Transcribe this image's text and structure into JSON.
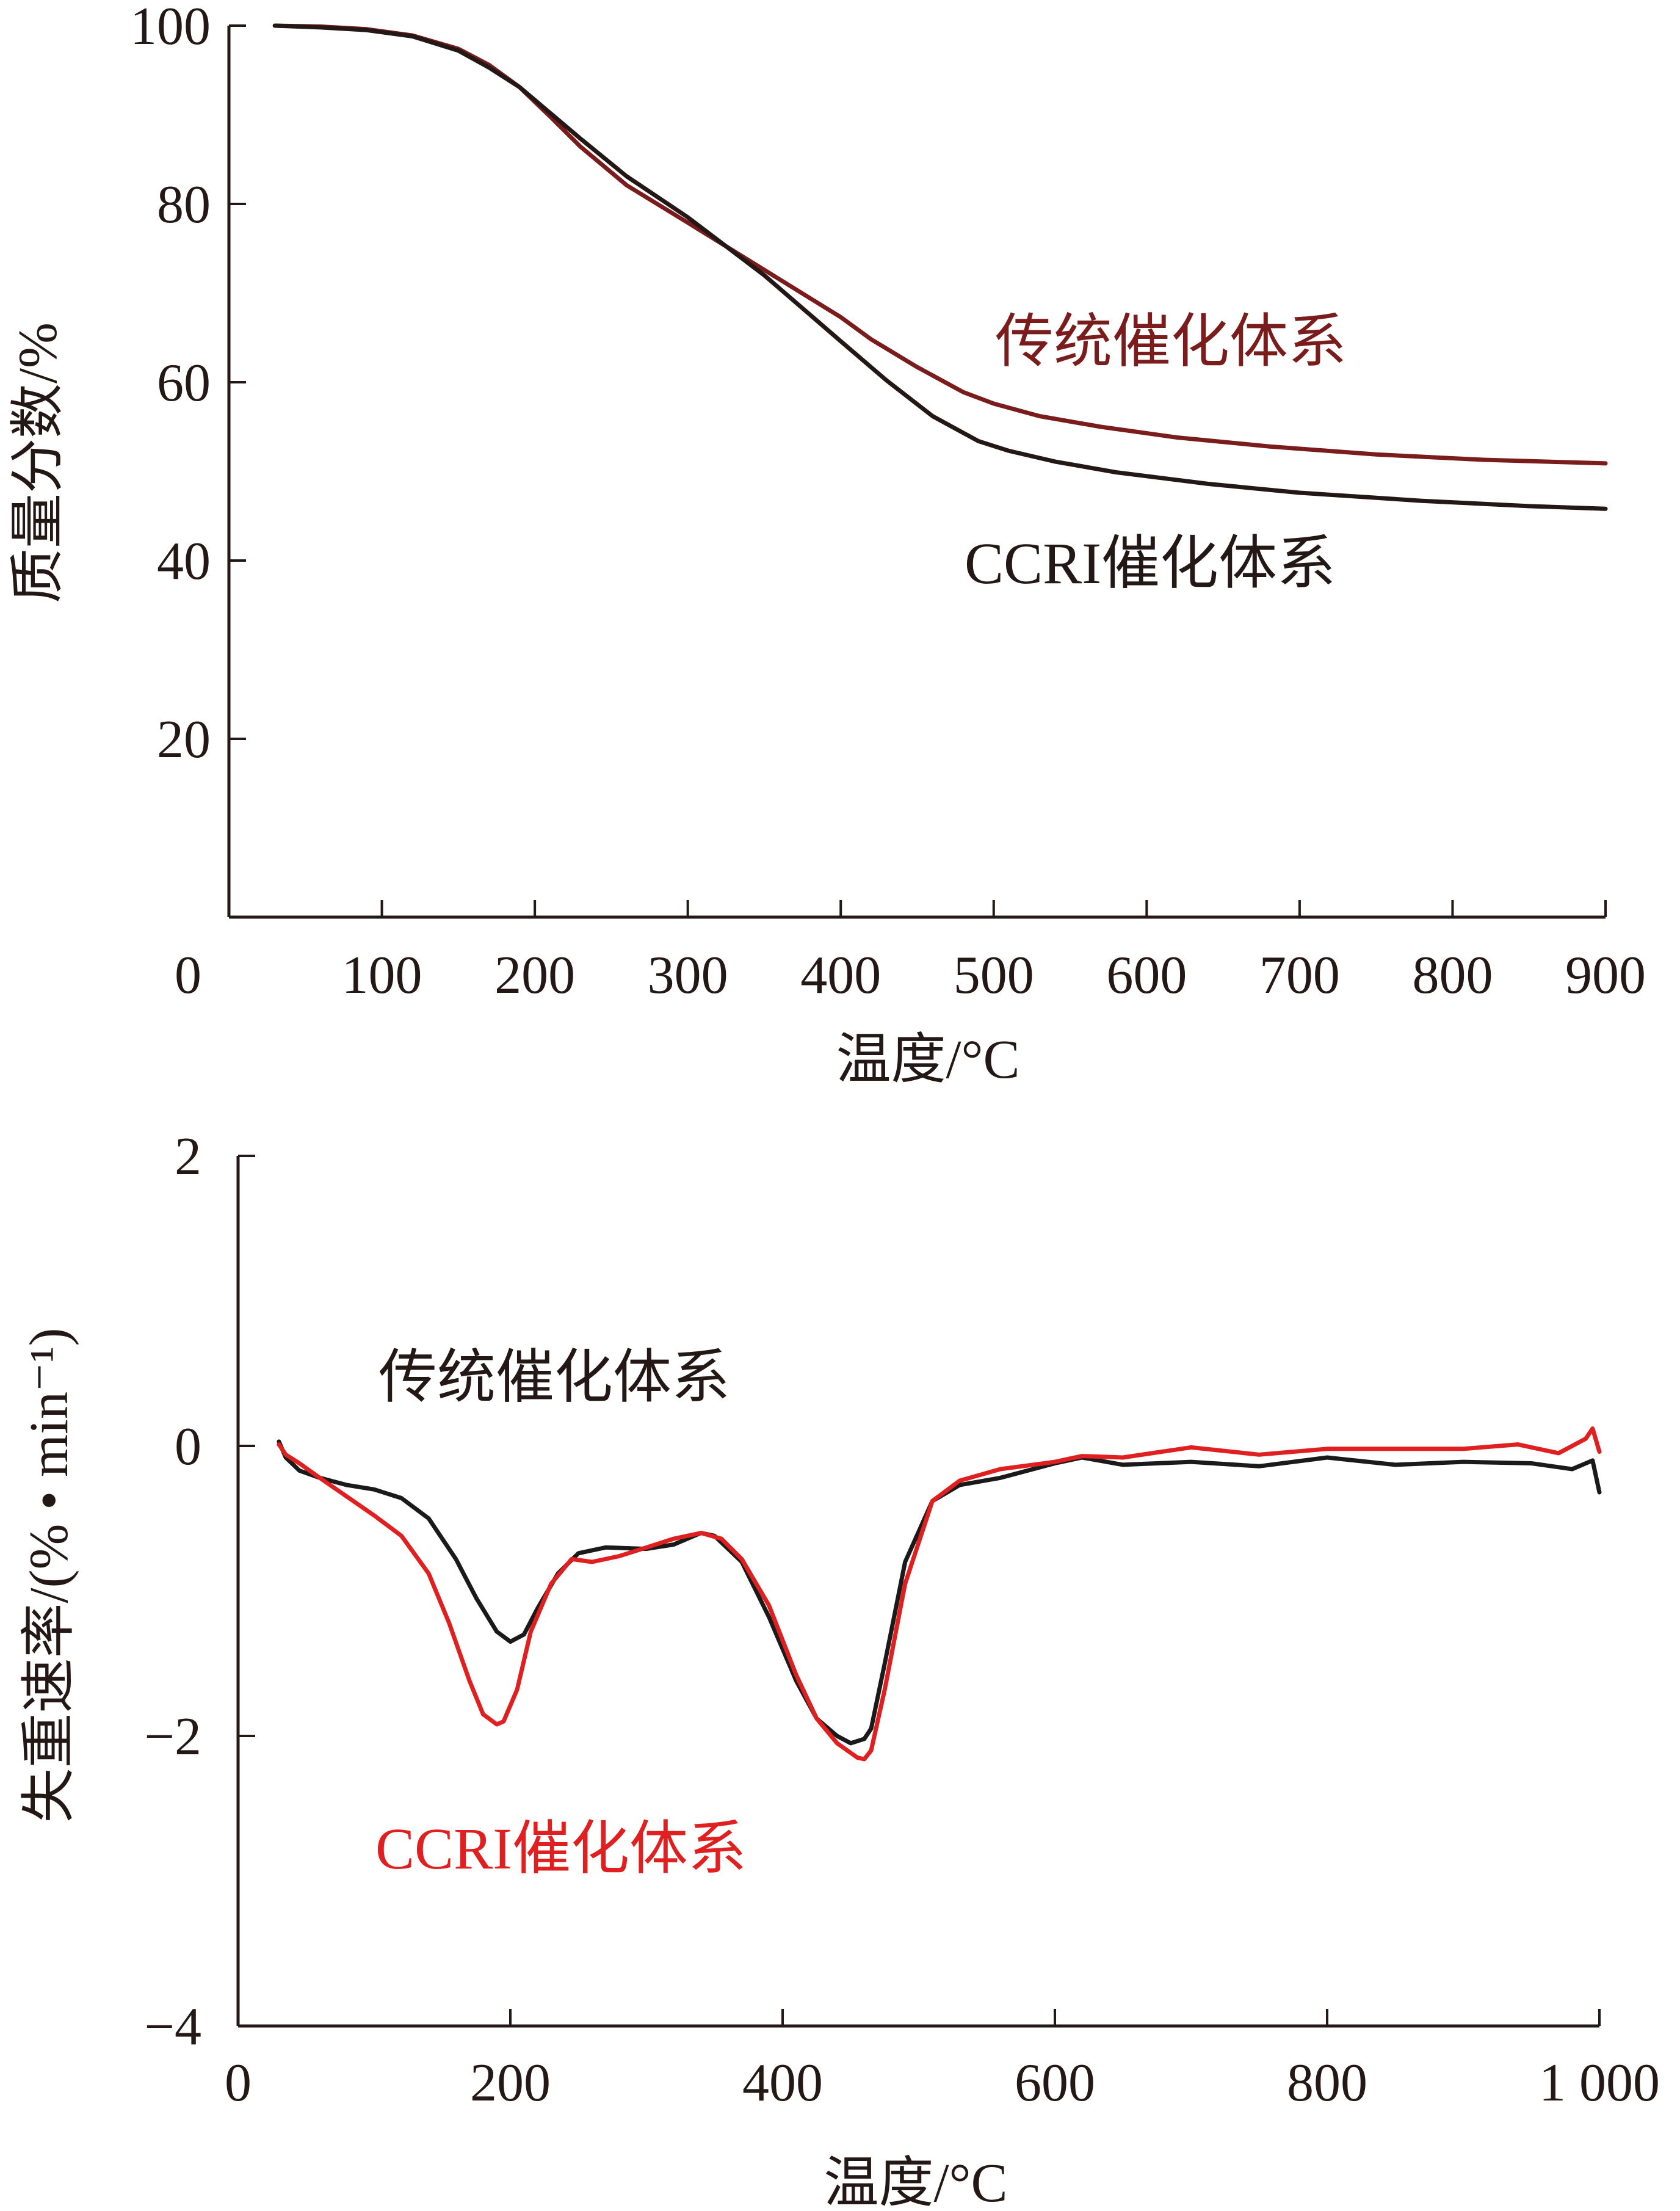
{
  "chart_data": [
    {
      "type": "line",
      "xlabel": "温度/°C",
      "ylabel": "质量分数/%",
      "xlim": [
        0,
        900
      ],
      "ylim": [
        0,
        100
      ],
      "x_ticks": [
        100,
        200,
        300,
        400,
        500,
        600,
        700,
        800,
        900
      ],
      "x_tick_labels": [
        "100",
        "200",
        "300",
        "400",
        "500",
        "600",
        "700",
        "800",
        "900"
      ],
      "y_ticks": [
        20,
        40,
        60,
        80,
        100
      ],
      "y_tick_labels": [
        "20",
        "40",
        "60",
        "80",
        "100"
      ],
      "origin_label": "0",
      "series": [
        {
          "name": "传统催化体系",
          "color": "#7a1c1c",
          "x": [
            30,
            60,
            90,
            120,
            150,
            170,
            190,
            210,
            230,
            260,
            300,
            350,
            400,
            420,
            450,
            480,
            500,
            530,
            570,
            620,
            680,
            750,
            820,
            880,
            900
          ],
          "y": [
            100,
            99.9,
            99.6,
            98.9,
            97.4,
            95.6,
            93.1,
            89.8,
            86.4,
            82.1,
            77.9,
            72.6,
            67.3,
            64.8,
            61.7,
            58.9,
            57.6,
            56.2,
            55.0,
            53.8,
            52.8,
            51.9,
            51.3,
            51.0,
            50.9
          ]
        },
        {
          "name": "CCRI催化体系",
          "color": "#231815",
          "x": [
            30,
            60,
            90,
            120,
            150,
            170,
            190,
            210,
            230,
            260,
            300,
            350,
            400,
            430,
            460,
            490,
            510,
            540,
            580,
            640,
            700,
            780,
            850,
            900
          ],
          "y": [
            100,
            99.8,
            99.5,
            98.8,
            97.2,
            95.3,
            93.1,
            90.2,
            87.3,
            83.1,
            78.5,
            72.0,
            64.6,
            60.2,
            56.2,
            53.4,
            52.3,
            51.1,
            49.9,
            48.6,
            47.6,
            46.7,
            46.1,
            45.8
          ]
        }
      ]
    },
    {
      "type": "line",
      "xlabel": "温度/°C",
      "ylabel": "失重速率/(% • min⁻¹)",
      "xlim": [
        0,
        1000
      ],
      "ylim": [
        -4,
        2
      ],
      "x_ticks": [
        0,
        200,
        400,
        600,
        800,
        1000
      ],
      "x_tick_labels": [
        "0",
        "200",
        "400",
        "600",
        "800",
        "1 000"
      ],
      "y_ticks": [
        -4,
        -2,
        0,
        2
      ],
      "y_tick_labels": [
        "−4",
        "−2",
        "0",
        "2"
      ],
      "series": [
        {
          "name": "传统催化体系",
          "color": "#1a1a1a",
          "x": [
            30,
            35,
            45,
            60,
            80,
            100,
            120,
            140,
            160,
            175,
            190,
            200,
            210,
            220,
            235,
            250,
            270,
            300,
            320,
            340,
            350,
            370,
            390,
            410,
            425,
            440,
            450,
            460,
            465,
            475,
            490,
            510,
            530,
            560,
            600,
            620,
            650,
            700,
            750,
            800,
            850,
            900,
            950,
            980,
            995,
            1000
          ],
          "y": [
            0.03,
            -0.08,
            -0.17,
            -0.22,
            -0.27,
            -0.3,
            -0.36,
            -0.5,
            -0.78,
            -1.05,
            -1.28,
            -1.35,
            -1.3,
            -1.12,
            -0.88,
            -0.74,
            -0.7,
            -0.71,
            -0.68,
            -0.6,
            -0.62,
            -0.8,
            -1.18,
            -1.62,
            -1.88,
            -2.0,
            -2.05,
            -2.02,
            -1.95,
            -1.5,
            -0.8,
            -0.38,
            -0.27,
            -0.22,
            -0.12,
            -0.08,
            -0.13,
            -0.11,
            -0.14,
            -0.08,
            -0.13,
            -0.11,
            -0.12,
            -0.16,
            -0.1,
            -0.32
          ]
        },
        {
          "name": "CCRI催化体系",
          "color": "#e02020",
          "x": [
            30,
            35,
            45,
            60,
            80,
            100,
            120,
            140,
            155,
            170,
            180,
            190,
            195,
            205,
            215,
            230,
            245,
            260,
            280,
            300,
            320,
            340,
            355,
            370,
            390,
            410,
            425,
            440,
            455,
            460,
            465,
            475,
            490,
            510,
            530,
            560,
            600,
            620,
            650,
            700,
            750,
            800,
            850,
            900,
            940,
            970,
            990,
            995,
            1000
          ],
          "y": [
            0.01,
            -0.06,
            -0.12,
            -0.22,
            -0.35,
            -0.48,
            -0.62,
            -0.88,
            -1.22,
            -1.62,
            -1.85,
            -1.92,
            -1.9,
            -1.68,
            -1.28,
            -0.95,
            -0.78,
            -0.8,
            -0.76,
            -0.7,
            -0.64,
            -0.6,
            -0.64,
            -0.78,
            -1.1,
            -1.58,
            -1.88,
            -2.05,
            -2.15,
            -2.16,
            -2.1,
            -1.68,
            -0.95,
            -0.38,
            -0.24,
            -0.16,
            -0.11,
            -0.07,
            -0.08,
            -0.01,
            -0.06,
            -0.02,
            -0.02,
            -0.02,
            0.01,
            -0.05,
            0.05,
            0.12,
            -0.04
          ]
        }
      ]
    }
  ]
}
